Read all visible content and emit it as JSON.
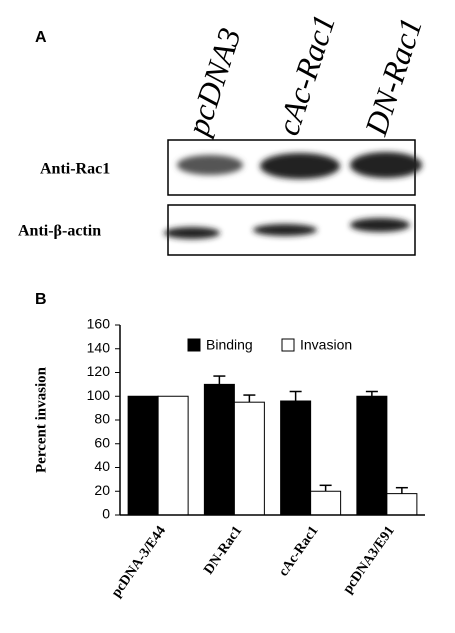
{
  "panel_a": {
    "label": "A",
    "lanes": [
      "pcDNA3",
      "cAc-Rac1",
      "DN-Rac1"
    ],
    "rows": [
      "Anti-Rac1",
      "Anti-β-actin"
    ]
  },
  "chart_data": {
    "type": "bar",
    "panel_label": "B",
    "y_label": "Percent invasion",
    "categories": [
      "pcDNA-3/E44",
      "DN-Rac1",
      "cAc-Rac1",
      "pcDNA3/E91"
    ],
    "series": [
      {
        "name": "Binding",
        "color": "#000000",
        "values": [
          100,
          110,
          96,
          100
        ],
        "errors": [
          0,
          7,
          8,
          4
        ]
      },
      {
        "name": "Invasion",
        "color": "#ffffff",
        "values": [
          100,
          95,
          20,
          18
        ],
        "errors": [
          0,
          6,
          5,
          5
        ]
      }
    ],
    "ylim": [
      0,
      160
    ],
    "yticks": [
      0,
      20,
      40,
      60,
      80,
      100,
      120,
      140,
      160
    ],
    "grid": false,
    "legend": "top"
  }
}
